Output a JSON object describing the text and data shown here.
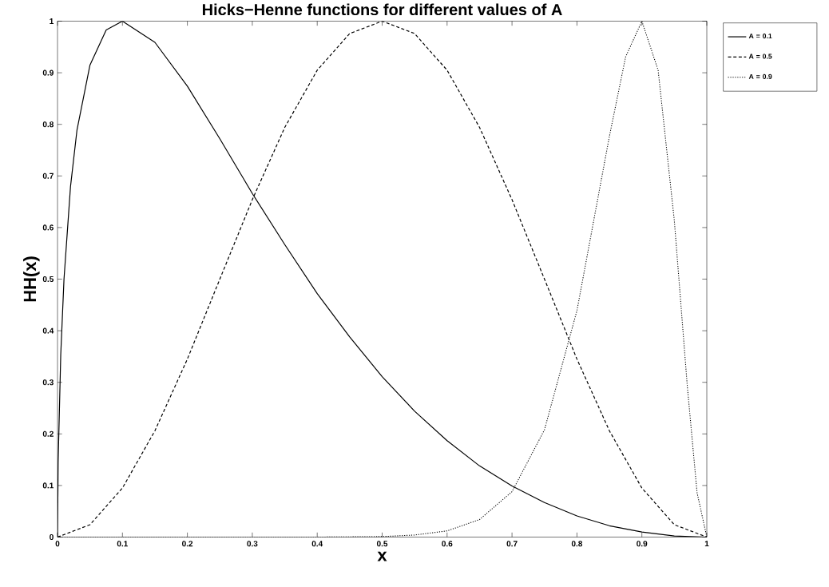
{
  "chart_data": {
    "type": "line",
    "title": "Hicks−Henne functions for different values of A",
    "xlabel": "x",
    "ylabel": "HH(x)",
    "xlim": [
      0,
      1
    ],
    "ylim": [
      0,
      1
    ],
    "xticks": [
      0,
      0.1,
      0.2,
      0.3,
      0.4,
      0.5,
      0.6,
      0.7,
      0.8,
      0.9,
      1
    ],
    "yticks": [
      0,
      0.1,
      0.2,
      0.3,
      0.4,
      0.5,
      0.6,
      0.7,
      0.8,
      0.9,
      1
    ],
    "grid": false,
    "legend": "top right",
    "series": [
      {
        "name": "A = 0.1",
        "color": "#000000",
        "line_style": "solid",
        "x": [
          0,
          0.001,
          0.005,
          0.01,
          0.02,
          0.03,
          0.05,
          0.075,
          0.1,
          0.15,
          0.2,
          0.25,
          0.3,
          0.35,
          0.4,
          0.45,
          0.5,
          0.55,
          0.6,
          0.65,
          0.7,
          0.75,
          0.8,
          0.85,
          0.9,
          0.95,
          1
        ],
        "values": [
          0,
          0.146,
          0.354,
          0.5,
          0.679,
          0.789,
          0.915,
          0.983,
          1,
          0.959,
          0.874,
          0.772,
          0.666,
          0.567,
          0.472,
          0.388,
          0.311,
          0.244,
          0.187,
          0.138,
          0.099,
          0.067,
          0.041,
          0.022,
          0.01,
          0.002,
          0
        ]
      },
      {
        "name": "A = 0.5",
        "color": "#000000",
        "line_style": "dashed",
        "x": [
          0,
          0.05,
          0.1,
          0.15,
          0.2,
          0.25,
          0.3,
          0.35,
          0.4,
          0.45,
          0.5,
          0.55,
          0.6,
          0.65,
          0.7,
          0.75,
          0.8,
          0.85,
          0.9,
          0.95,
          1
        ],
        "values": [
          0,
          0.024,
          0.095,
          0.206,
          0.345,
          0.5,
          0.654,
          0.794,
          0.905,
          0.976,
          1,
          0.976,
          0.905,
          0.794,
          0.654,
          0.5,
          0.345,
          0.206,
          0.095,
          0.024,
          0
        ]
      },
      {
        "name": "A = 0.9",
        "color": "#000000",
        "line_style": "dotted",
        "x": [
          0,
          0.4,
          0.5,
          0.55,
          0.6,
          0.65,
          0.7,
          0.75,
          0.8,
          0.85,
          0.875,
          0.9,
          0.925,
          0.95,
          0.97,
          0.985,
          1
        ],
        "values": [
          0,
          0,
          0.001,
          0.004,
          0.012,
          0.034,
          0.088,
          0.208,
          0.439,
          0.777,
          0.931,
          1,
          0.905,
          0.613,
          0.292,
          0.086,
          0
        ]
      }
    ]
  }
}
